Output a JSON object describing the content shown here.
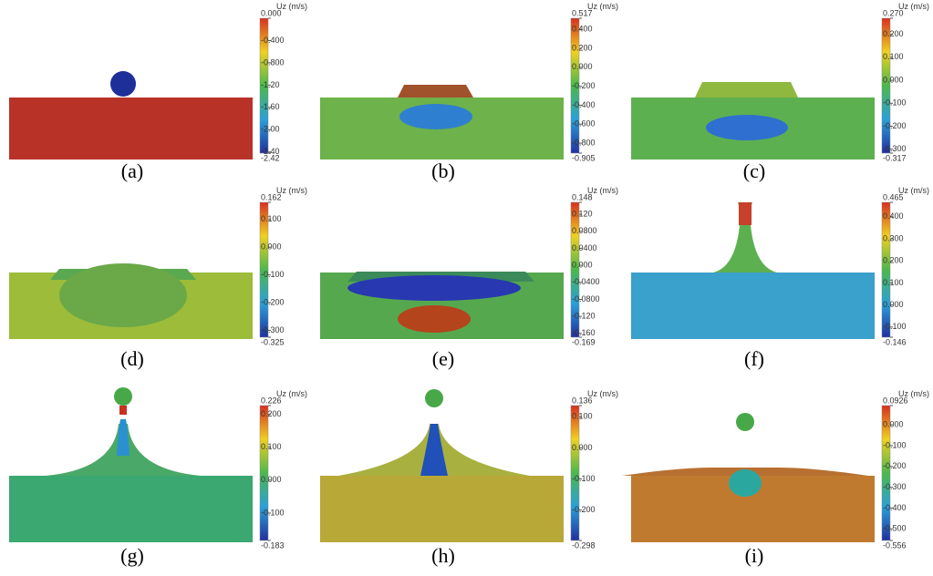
{
  "panels": [
    {
      "label": "(a)",
      "colorbar": {
        "title": "Uz (m/s)",
        "ticks": [
          "0.000",
          "-0.400",
          "-0.800",
          "-1.20",
          "-1.60",
          "-2.00",
          "-2.40",
          "-2.42"
        ]
      }
    },
    {
      "label": "(b)",
      "colorbar": {
        "title": "Uz (m/s)",
        "ticks": [
          "0.517",
          "0.400",
          "0.200",
          "0.000",
          "-0.200",
          "-0.400",
          "-0.600",
          "-0.800",
          "-0.905"
        ]
      }
    },
    {
      "label": "(c)",
      "colorbar": {
        "title": "Uz (m/s)",
        "ticks": [
          "0.270",
          "0.200",
          "0.100",
          "0.000",
          "-0.100",
          "-0.200",
          "-0.300",
          "-0.317"
        ]
      }
    },
    {
      "label": "(d)",
      "colorbar": {
        "title": "Uz (m/s)",
        "ticks": [
          "0.162",
          "0.100",
          "0.000",
          "-0.100",
          "-0.200",
          "-0.300",
          "-0.325"
        ]
      }
    },
    {
      "label": "(e)",
      "colorbar": {
        "title": "Uz (m/s)",
        "ticks": [
          "0.148",
          "0.120",
          "0.0800",
          "0.0400",
          "0.000",
          "-0.0400",
          "-0.0800",
          "-0.120",
          "-0.160",
          "-0.169"
        ]
      }
    },
    {
      "label": "(f)",
      "colorbar": {
        "title": "Uz (m/s)",
        "ticks": [
          "0.465",
          "0.400",
          "0.300",
          "0.200",
          "0.100",
          "0.000",
          "-0.100",
          "-0.146"
        ]
      }
    },
    {
      "label": "(g)",
      "colorbar": {
        "title": "Uz (m/s)",
        "ticks": [
          "0.226",
          "0.200",
          "0.100",
          "0.000",
          "-0.100",
          "-0.183"
        ]
      }
    },
    {
      "label": "(h)",
      "colorbar": {
        "title": "Uz (m/s)",
        "ticks": [
          "0.136",
          "0.100",
          "0.000",
          "-0.100",
          "-0.200",
          "-0.298"
        ]
      }
    },
    {
      "label": "(i)",
      "colorbar": {
        "title": "Uz (m/s)",
        "ticks": [
          "0.0926",
          "0.000",
          "-0.100",
          "-0.200",
          "-0.300",
          "-0.400",
          "-0.500",
          "-0.556"
        ]
      }
    }
  ]
}
